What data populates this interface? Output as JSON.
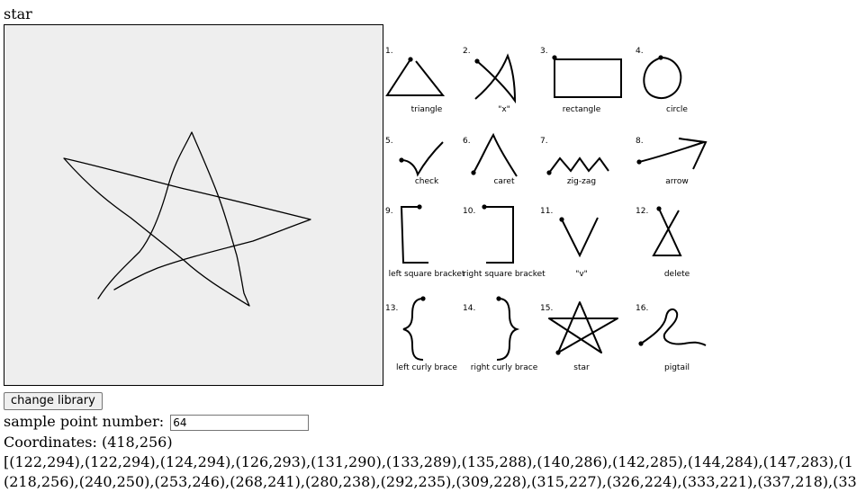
{
  "page": {
    "title": "star"
  },
  "library": [
    {
      "num": "1.",
      "name": "triangle",
      "icon": "triangle-gesture"
    },
    {
      "num": "2.",
      "name": "\"x\"",
      "icon": "x-gesture"
    },
    {
      "num": "3.",
      "name": "rectangle",
      "icon": "rectangle-gesture"
    },
    {
      "num": "4.",
      "name": "circle",
      "icon": "circle-gesture"
    },
    {
      "num": "5.",
      "name": "check",
      "icon": "check-gesture"
    },
    {
      "num": "6.",
      "name": "caret",
      "icon": "caret-gesture"
    },
    {
      "num": "7.",
      "name": "zig-zag",
      "icon": "zig-zag-gesture"
    },
    {
      "num": "8.",
      "name": "arrow",
      "icon": "arrow-gesture"
    },
    {
      "num": "9.",
      "name": "left square bracket",
      "icon": "left-square-bracket-gesture"
    },
    {
      "num": "10.",
      "name": "right square bracket",
      "icon": "right-square-bracket-gesture"
    },
    {
      "num": "11.",
      "name": "\"v\"",
      "icon": "v-gesture"
    },
    {
      "num": "12.",
      "name": "delete",
      "icon": "delete-gesture"
    },
    {
      "num": "13.",
      "name": "left curly brace",
      "icon": "left-curly-brace-gesture"
    },
    {
      "num": "14.",
      "name": "right curly brace",
      "icon": "right-curly-brace-gesture"
    },
    {
      "num": "15.",
      "name": "star",
      "icon": "star-gesture"
    },
    {
      "num": "16.",
      "name": "pigtail",
      "icon": "pigtail-gesture"
    }
  ],
  "controls": {
    "change_library_label": "change library",
    "sample_label": "sample point number:",
    "sample_value": "64"
  },
  "status": {
    "coordinates": "Coordinates: (418,256)",
    "points_line1": "[(122,294),(122,294),(124,294),(126,293),(131,290),(133,289),(135,288),(140,286),(142,285),(144,284),(147,283),(1",
    "points_line2": "(218,256),(240,250),(253,246),(268,241),(280,238),(292,235),(309,228),(315,227),(326,224),(333,221),(337,218),(33"
  },
  "colors": {
    "canvas_bg": "#eeeeee",
    "stroke": "#000000"
  }
}
